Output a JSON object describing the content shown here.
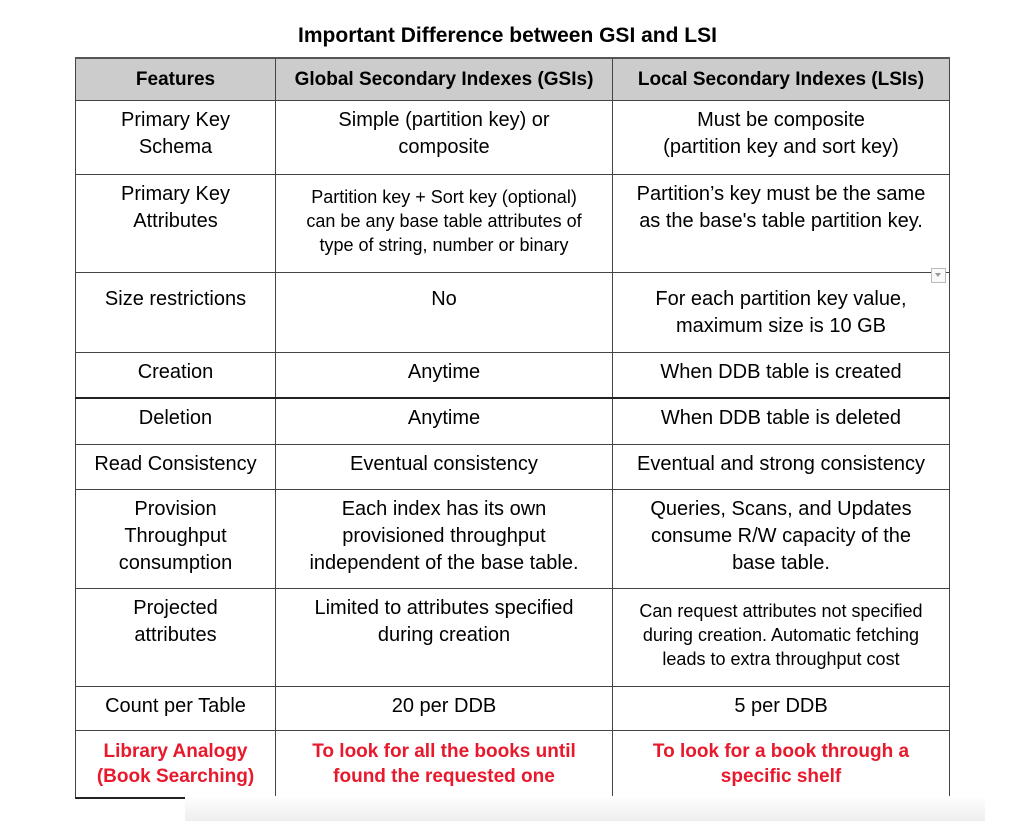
{
  "title": "Important Difference between GSI and LSI",
  "table": {
    "headers": [
      "Features",
      "Global Secondary Indexes (GSIs)",
      "Local Secondary Indexes (LSIs)"
    ],
    "rows": [
      [
        "Primary Key\nSchema",
        "Simple (partition key) or\ncomposite",
        "Must be composite\n(partition key and sort key)"
      ],
      [
        "Primary Key\nAttributes",
        "Partition key + Sort key (optional)\ncan be any base table attributes of\ntype of string, number or binary",
        "Partition’s key must be the same\nas the base's table partition key."
      ],
      [
        "Size restrictions",
        "No",
        "For each partition key value,\nmaximum size is 10 GB"
      ],
      [
        "Creation",
        "Anytime",
        "When DDB table is created"
      ],
      [
        "Deletion",
        "Anytime",
        "When DDB table is deleted"
      ],
      [
        "Read Consistency",
        "Eventual consistency",
        "Eventual and strong consistency"
      ],
      [
        "Provision\nThroughput\nconsumption",
        "Each index has its own\nprovisioned throughput\nindependent of the base table.",
        "Queries, Scans, and Updates\nconsume R/W capacity of the\nbase table."
      ],
      [
        "Projected\nattributes",
        "Limited to attributes specified\nduring creation",
        "Can request attributes not specified\nduring creation. Automatic fetching\nleads to extra throughput cost"
      ],
      [
        "Count per Table",
        "20 per DDB",
        "5 per DDB"
      ],
      [
        "Library Analogy\n(Book Searching)",
        "To look for all the books until\nfound the requested one",
        "To look for a book through a\nspecific shelf"
      ]
    ]
  },
  "colors": {
    "header_bg": "#cccccc",
    "analogy_text": "#e8192c"
  }
}
